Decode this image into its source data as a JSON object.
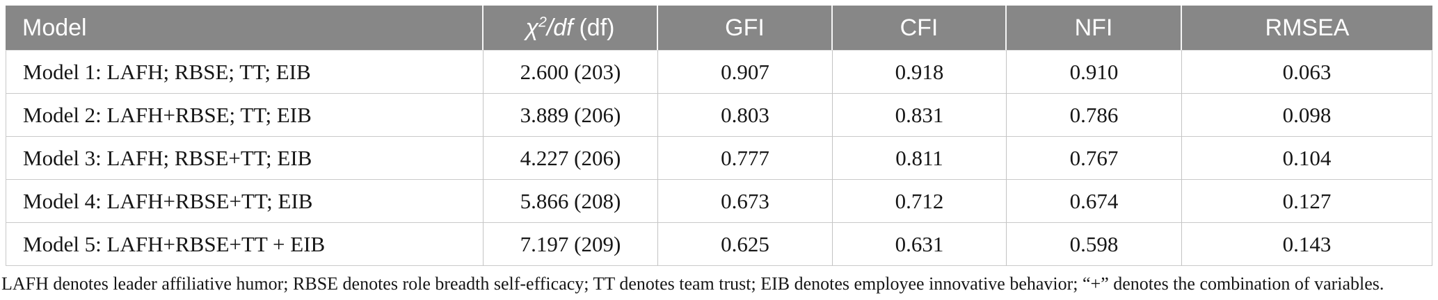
{
  "table": {
    "headers": {
      "model": "Model",
      "chi2df": {
        "chi": "χ",
        "exp": "2",
        "slash_df": "/df",
        "tail": "(df)"
      },
      "gfi": "GFI",
      "cfi": "CFI",
      "nfi": "NFI",
      "rmsea": "RMSEA"
    },
    "rows": [
      {
        "model": "Model 1: LAFH; RBSE; TT; EIB",
        "chi2_df": "2.600 (203)",
        "gfi": "0.907",
        "cfi": "0.918",
        "nfi": "0.910",
        "rmsea": "0.063"
      },
      {
        "model": "Model 2: LAFH+RBSE; TT; EIB",
        "chi2_df": "3.889 (206)",
        "gfi": "0.803",
        "cfi": "0.831",
        "nfi": "0.786",
        "rmsea": "0.098"
      },
      {
        "model": "Model 3: LAFH; RBSE+TT; EIB",
        "chi2_df": "4.227 (206)",
        "gfi": "0.777",
        "cfi": "0.811",
        "nfi": "0.767",
        "rmsea": "0.104"
      },
      {
        "model": "Model 4: LAFH+RBSE+TT; EIB",
        "chi2_df": "5.866 (208)",
        "gfi": "0.673",
        "cfi": "0.712",
        "nfi": "0.674",
        "rmsea": "0.127"
      },
      {
        "model": "Model 5: LAFH+RBSE+TT + EIB",
        "chi2_df": "7.197 (209)",
        "gfi": "0.625",
        "cfi": "0.631",
        "nfi": "0.598",
        "rmsea": "0.143"
      }
    ]
  },
  "footnote": "LAFH denotes leader affiliative humor; RBSE denotes role breadth self-efficacy; TT denotes team trust; EIB denotes employee innovative behavior; “+” denotes the combination of variables.",
  "colors": {
    "header_bg": "#878787",
    "header_text": "#ffffff",
    "row_border": "#c9c9c9",
    "body_text": "#161616"
  },
  "chart_data": {
    "type": "table",
    "columns": [
      "Model",
      "χ2/df (df)",
      "GFI",
      "CFI",
      "NFI",
      "RMSEA"
    ],
    "rows": [
      [
        "Model 1: LAFH; RBSE; TT; EIB",
        "2.600 (203)",
        0.907,
        0.918,
        0.91,
        0.063
      ],
      [
        "Model 2: LAFH+RBSE; TT; EIB",
        "3.889 (206)",
        0.803,
        0.831,
        0.786,
        0.098
      ],
      [
        "Model 3: LAFH; RBSE+TT; EIB",
        "4.227 (206)",
        0.777,
        0.811,
        0.767,
        0.104
      ],
      [
        "Model 4: LAFH+RBSE+TT; EIB",
        "5.866 (208)",
        0.673,
        0.712,
        0.674,
        0.127
      ],
      [
        "Model 5: LAFH+RBSE+TT + EIB",
        "7.197 (209)",
        0.625,
        0.631,
        0.598,
        0.143
      ]
    ]
  }
}
